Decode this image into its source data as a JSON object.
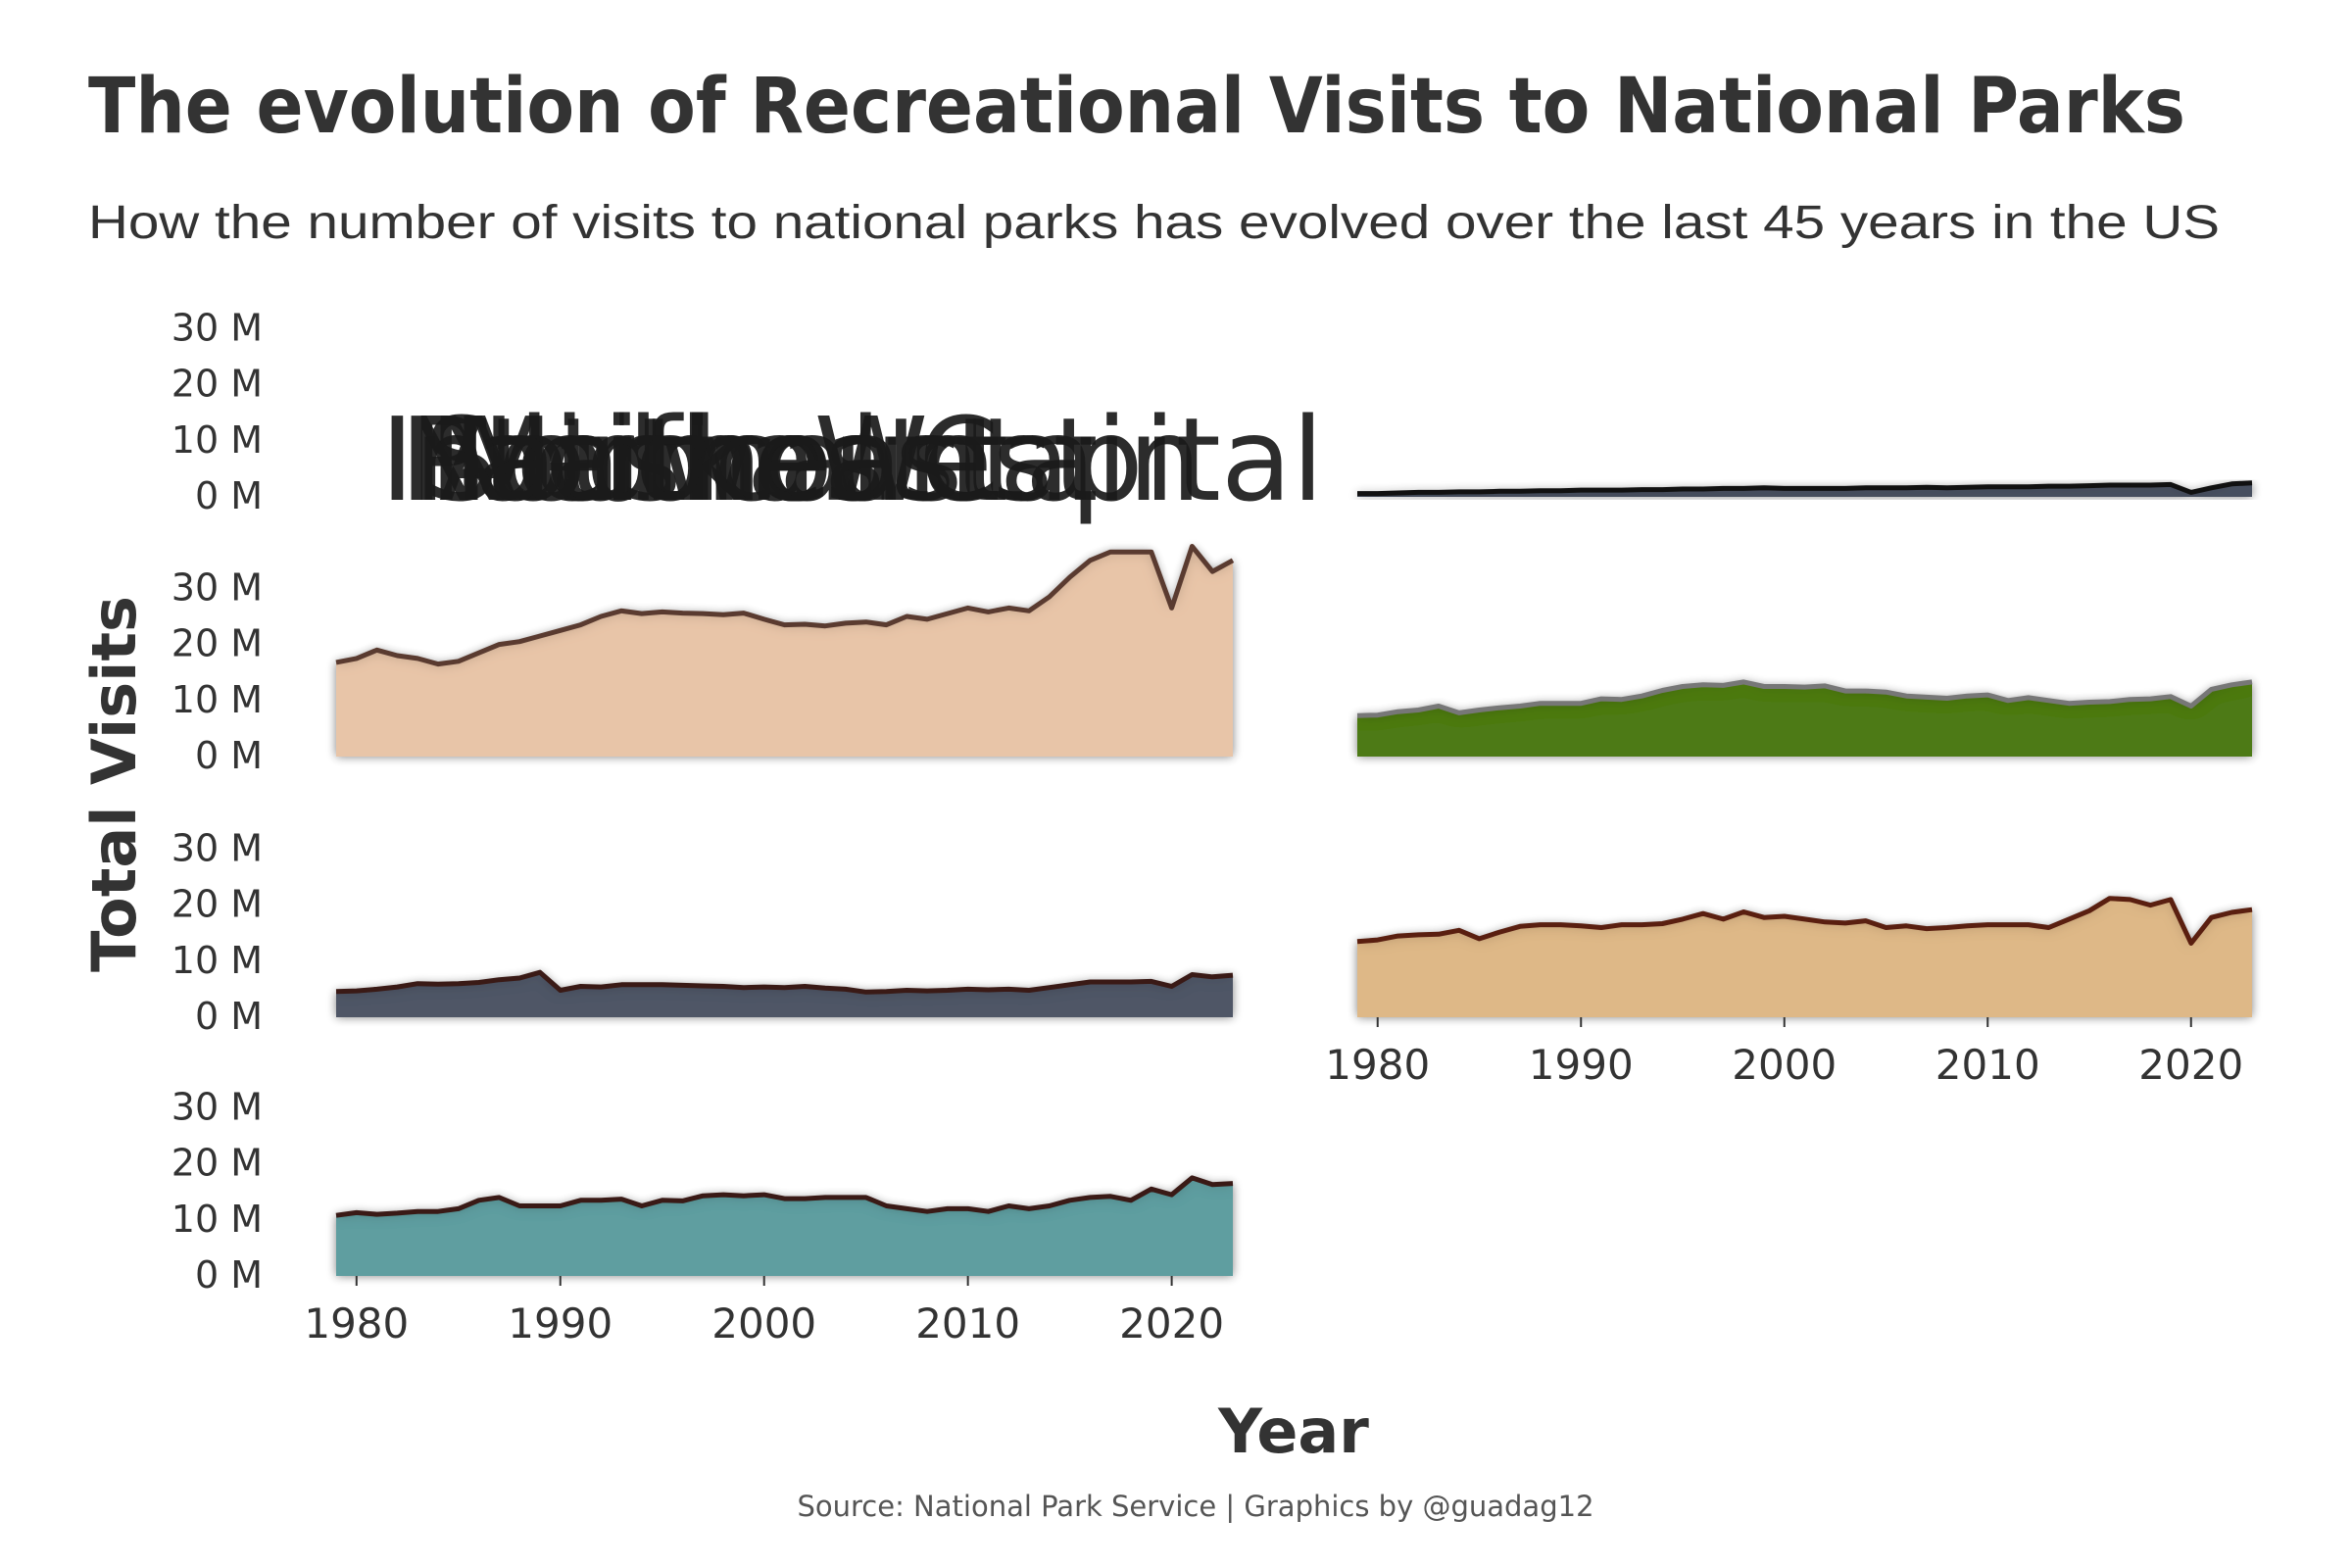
{
  "title": "The evolution of Recreational Visits to National Parks",
  "subtitle": "How the number of visits to national parks has evolved over the last 45 years in the US",
  "caption": "Source: National Park Service |  Graphics by @guadag12",
  "xlabel": "Year",
  "ylabel": "Total Visits",
  "overlapping_panel_labels": [
    "Intermountain",
    "Pacific West",
    "Southeast",
    "Alaska",
    "Midwest",
    "Northeast",
    "National Capital"
  ],
  "colors": {
    "text": "#333333",
    "overlap_text": "#1a1a1a"
  },
  "chart_data": {
    "type": "area",
    "title": "The evolution of Recreational Visits to National Parks",
    "xlabel": "Year",
    "ylabel": "Total Visits",
    "xlim": [
      1979,
      2023
    ],
    "ylim": [
      0,
      35
    ],
    "y_unit": "M",
    "x_ticks": [
      1980,
      1990,
      2000,
      2010,
      2020
    ],
    "y_ticks": [
      0,
      10,
      20,
      30
    ],
    "y_tick_labels": [
      "0 M",
      "10 M",
      "20 M",
      "30 M"
    ],
    "x_tick_labels": [
      "1980",
      "1990",
      "2000",
      "2010",
      "2020"
    ],
    "years": [
      1979,
      1980,
      1981,
      1982,
      1983,
      1984,
      1985,
      1986,
      1987,
      1988,
      1989,
      1990,
      1991,
      1992,
      1993,
      1994,
      1995,
      1996,
      1997,
      1998,
      1999,
      2000,
      2001,
      2002,
      2003,
      2004,
      2005,
      2006,
      2007,
      2008,
      2009,
      2010,
      2011,
      2012,
      2013,
      2014,
      2015,
      2016,
      2017,
      2018,
      2019,
      2020,
      2021,
      2022,
      2023
    ],
    "panels": [
      {
        "position": "top-left",
        "fill": "#2b2b2b",
        "line": "#1a1a1a",
        "show_x_axis": false,
        "values": [
          0,
          0,
          0,
          0,
          0,
          0,
          0,
          0,
          0,
          0,
          0,
          0,
          0,
          0,
          0,
          0,
          0,
          0,
          0,
          0,
          0,
          0,
          0,
          0,
          0,
          0,
          0,
          0,
          0,
          0,
          0,
          0,
          0,
          0,
          0,
          0,
          0,
          0,
          0,
          0,
          0,
          0,
          0,
          0,
          0
        ]
      },
      {
        "position": "top-right",
        "fill": "#4a5160",
        "line": "#111111",
        "show_x_axis": false,
        "values": [
          0.6,
          0.6,
          0.7,
          0.8,
          0.8,
          0.9,
          0.9,
          1.0,
          1.0,
          1.1,
          1.1,
          1.2,
          1.2,
          1.2,
          1.3,
          1.3,
          1.4,
          1.4,
          1.5,
          1.5,
          1.6,
          1.5,
          1.5,
          1.5,
          1.5,
          1.6,
          1.6,
          1.6,
          1.7,
          1.6,
          1.7,
          1.8,
          1.8,
          1.8,
          1.9,
          1.9,
          2.0,
          2.1,
          2.1,
          2.1,
          2.2,
          0.8,
          1.6,
          2.3,
          2.5
        ]
      },
      {
        "position": "second-left",
        "fill": "#e8c5a8",
        "line": "#5a3b30",
        "show_x_axis": false,
        "values": [
          16.8,
          17.5,
          19.0,
          18.0,
          17.5,
          16.5,
          17.0,
          18.5,
          20.0,
          20.5,
          21.5,
          22.5,
          23.5,
          25.0,
          26.0,
          25.5,
          25.8,
          25.6,
          25.5,
          25.3,
          25.6,
          24.5,
          23.5,
          23.6,
          23.3,
          23.8,
          24.0,
          23.5,
          25.0,
          24.5,
          25.5,
          26.5,
          25.8,
          26.5,
          26.0,
          28.5,
          32.0,
          35.0,
          36.5,
          36.5,
          36.5,
          26.5,
          37.5,
          33.0,
          35.0
        ]
      },
      {
        "position": "second-right",
        "fill": "#4d7a18",
        "line": "#777777",
        "show_x_axis": false,
        "values": [
          7.3,
          7.4,
          8.0,
          8.3,
          9.0,
          7.8,
          8.3,
          8.7,
          9.0,
          9.5,
          9.5,
          9.5,
          10.3,
          10.2,
          10.8,
          11.8,
          12.5,
          12.8,
          12.7,
          13.3,
          12.5,
          12.5,
          12.4,
          12.6,
          11.7,
          11.7,
          11.5,
          10.8,
          10.6,
          10.4,
          10.8,
          11.0,
          10.0,
          10.5,
          10.0,
          9.5,
          9.7,
          9.8,
          10.2,
          10.3,
          10.7,
          9.0,
          12.0,
          12.8,
          13.3
        ]
      },
      {
        "position": "third-left",
        "fill": "#4f5766",
        "line": "#3a1a16",
        "show_x_axis": false,
        "values": [
          4.6,
          4.7,
          5.0,
          5.4,
          6.0,
          5.9,
          6.0,
          6.2,
          6.7,
          7.0,
          8.0,
          4.8,
          5.5,
          5.4,
          5.8,
          5.8,
          5.8,
          5.7,
          5.6,
          5.5,
          5.3,
          5.4,
          5.3,
          5.5,
          5.2,
          5.0,
          4.5,
          4.6,
          4.8,
          4.7,
          4.8,
          5.0,
          4.9,
          5.0,
          4.8,
          5.3,
          5.8,
          6.3,
          6.3,
          6.3,
          6.4,
          5.5,
          7.6,
          7.2,
          7.5
        ]
      },
      {
        "position": "third-right",
        "fill": "#deb887",
        "line": "#5a1f10",
        "show_x_axis": true,
        "values": [
          13.5,
          13.8,
          14.5,
          14.7,
          14.8,
          15.5,
          14.0,
          15.2,
          16.2,
          16.5,
          16.5,
          16.3,
          16.0,
          16.5,
          16.5,
          16.7,
          17.5,
          18.5,
          17.5,
          18.8,
          17.8,
          18.0,
          17.5,
          17.0,
          16.8,
          17.2,
          16.0,
          16.3,
          15.8,
          16.0,
          16.3,
          16.5,
          16.5,
          16.5,
          16.0,
          17.5,
          19.0,
          21.2,
          21.0,
          20.0,
          21.0,
          13.2,
          17.8,
          18.7,
          19.2
        ]
      },
      {
        "position": "bottom-left",
        "fill": "#5f9ea0",
        "line": "#3a1a16",
        "show_x_axis": true,
        "values": [
          10.8,
          11.3,
          11.0,
          11.2,
          11.5,
          11.5,
          12.0,
          13.5,
          14.0,
          12.5,
          12.5,
          12.5,
          13.5,
          13.5,
          13.7,
          12.5,
          13.5,
          13.4,
          14.3,
          14.5,
          14.3,
          14.5,
          13.8,
          13.8,
          14.0,
          14.0,
          14.0,
          12.5,
          12.0,
          11.5,
          12.0,
          12.0,
          11.5,
          12.5,
          12.0,
          12.5,
          13.5,
          14.0,
          14.2,
          13.5,
          15.5,
          14.5,
          17.5,
          16.3,
          16.5
        ]
      }
    ]
  }
}
